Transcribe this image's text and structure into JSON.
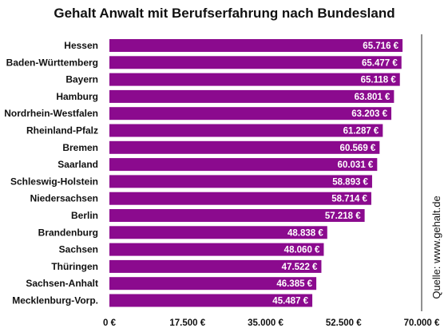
{
  "chart_data": {
    "type": "bar",
    "orientation": "horizontal",
    "title": "Gehalt Anwalt mit Berufserfahrung nach Bundesland",
    "categories": [
      "Hessen",
      "Baden-Württemberg",
      "Bayern",
      "Hamburg",
      "Nordrhein-Westfalen",
      "Rheinland-Pfalz",
      "Bremen",
      "Saarland",
      "Schleswig-Holstein",
      "Niedersachsen",
      "Berlin",
      "Brandenburg",
      "Sachsen",
      "Thüringen",
      "Sachsen-Anhalt",
      "Mecklenburg-Vorp."
    ],
    "values": [
      65716,
      65477,
      65118,
      63801,
      63203,
      61287,
      60569,
      60031,
      58893,
      58714,
      57218,
      48838,
      48060,
      47522,
      46385,
      45487
    ],
    "value_labels": [
      "65.716 €",
      "65.477 €",
      "65.118 €",
      "63.801 €",
      "63.203 €",
      "61.287 €",
      "60.569 €",
      "60.031 €",
      "58.893 €",
      "58.714 €",
      "57.218 €",
      "48.838 €",
      "48.060 €",
      "47.522 €",
      "46.385 €",
      "45.487 €"
    ],
    "xlim": [
      0,
      70000
    ],
    "xticks": [
      0,
      17500,
      35000,
      52500,
      70000
    ],
    "xtick_labels": [
      "0 €",
      "17.500 €",
      "35.000 €",
      "52.500 €",
      "70.000 €"
    ],
    "xlabel": "",
    "ylabel": "",
    "grid": false,
    "legend": "none",
    "bar_color": "#8b0a8e",
    "source": "Quelle: www.gehalt.de"
  }
}
